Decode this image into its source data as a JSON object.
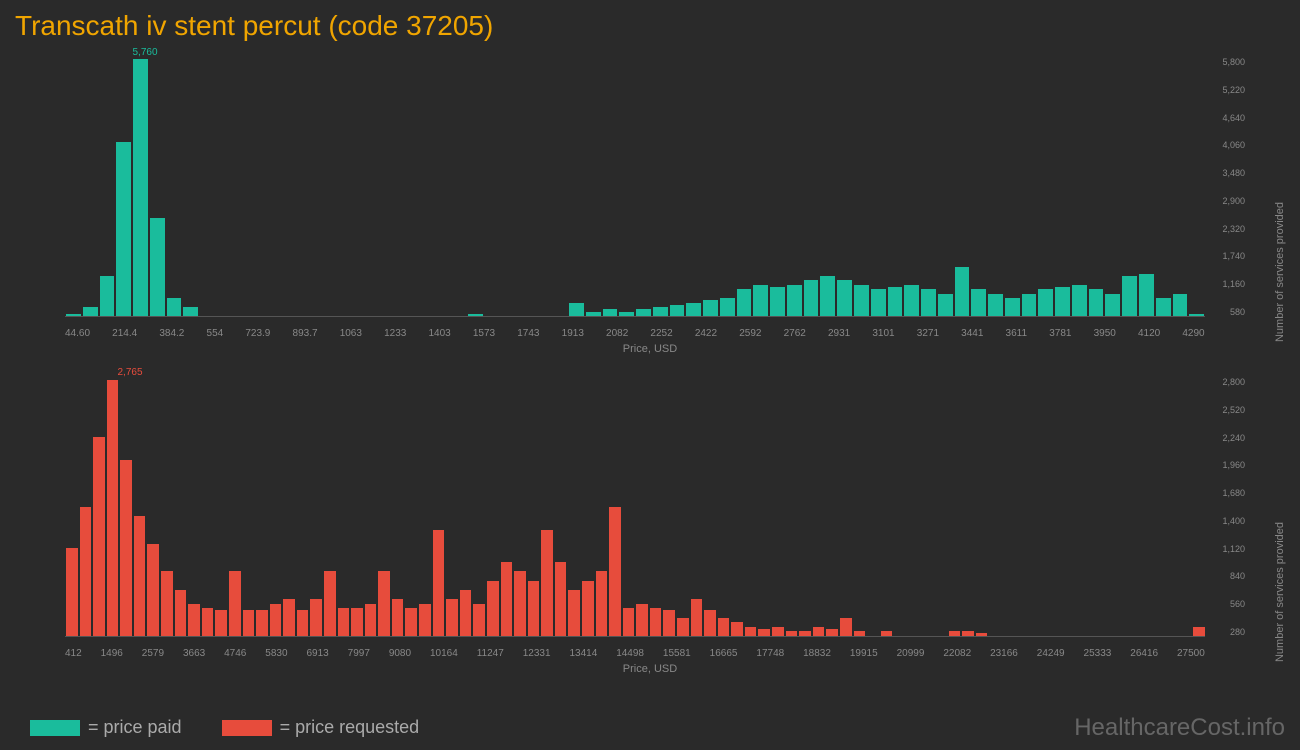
{
  "title": "Transcath iv stent percut (code 37205)",
  "background_color": "#2a2a2a",
  "text_color": "#888888",
  "title_color": "#f0a500",
  "watermark": "HealthcareCost.info",
  "chart1": {
    "type": "bar",
    "color": "#1abc9c",
    "peak_label": "5,760",
    "peak_value": 5760,
    "x_label": "Price, USD",
    "y_label": "Number of services provided",
    "x_ticks": [
      "44.60",
      "214.4",
      "384.2",
      "554",
      "723.9",
      "893.7",
      "1063",
      "1233",
      "1403",
      "1573",
      "1743",
      "1913",
      "2082",
      "2252",
      "2422",
      "2592",
      "2762",
      "2931",
      "3101",
      "3271",
      "3441",
      "3611",
      "3781",
      "3950",
      "4120",
      "4290"
    ],
    "y_ticks": [
      "580",
      "1,160",
      "1,740",
      "2,320",
      "2,900",
      "3,480",
      "4,060",
      "4,640",
      "5,220",
      "5,800"
    ],
    "y_max": 5800,
    "values": [
      50,
      200,
      900,
      3900,
      5760,
      2200,
      400,
      200,
      0,
      0,
      0,
      0,
      0,
      0,
      0,
      0,
      0,
      0,
      0,
      0,
      0,
      0,
      0,
      0,
      50,
      0,
      0,
      0,
      0,
      0,
      300,
      100,
      150,
      100,
      150,
      200,
      250,
      300,
      350,
      400,
      600,
      700,
      650,
      700,
      800,
      900,
      800,
      700,
      600,
      650,
      700,
      600,
      500,
      1100,
      600,
      500,
      400,
      500,
      600,
      650,
      700,
      600,
      500,
      900,
      950,
      400,
      500,
      50
    ]
  },
  "chart2": {
    "type": "bar",
    "color": "#e74c3c",
    "peak_label": "2,765",
    "peak_value": 2765,
    "x_label": "Price, USD",
    "y_label": "Number of services provided",
    "x_ticks": [
      "412",
      "1496",
      "2579",
      "3663",
      "4746",
      "5830",
      "6913",
      "7997",
      "9080",
      "10164",
      "11247",
      "12331",
      "13414",
      "14498",
      "15581",
      "16665",
      "17748",
      "18832",
      "19915",
      "20999",
      "22082",
      "23166",
      "24249",
      "25333",
      "26416",
      "27500"
    ],
    "y_ticks": [
      "280",
      "560",
      "840",
      "1,120",
      "1,400",
      "1,680",
      "1,960",
      "2,240",
      "2,520",
      "2,800"
    ],
    "y_max": 2800,
    "values": [
      950,
      1400,
      2150,
      2765,
      1900,
      1300,
      1000,
      700,
      500,
      350,
      300,
      280,
      700,
      280,
      280,
      350,
      400,
      280,
      400,
      700,
      300,
      300,
      350,
      700,
      400,
      300,
      350,
      1150,
      400,
      500,
      350,
      600,
      800,
      700,
      600,
      1150,
      800,
      500,
      600,
      700,
      1400,
      300,
      350,
      300,
      280,
      200,
      400,
      280,
      200,
      150,
      100,
      80,
      100,
      50,
      50,
      100,
      80,
      200,
      50,
      0,
      50,
      0,
      0,
      0,
      0,
      50,
      50,
      30,
      0,
      0,
      0,
      0,
      0,
      0,
      0,
      0,
      0,
      0,
      0,
      0,
      0,
      0,
      0,
      100
    ]
  },
  "legend": {
    "paid": {
      "label": "= price paid",
      "color": "#1abc9c"
    },
    "requested": {
      "label": "= price requested",
      "color": "#e74c3c"
    }
  }
}
